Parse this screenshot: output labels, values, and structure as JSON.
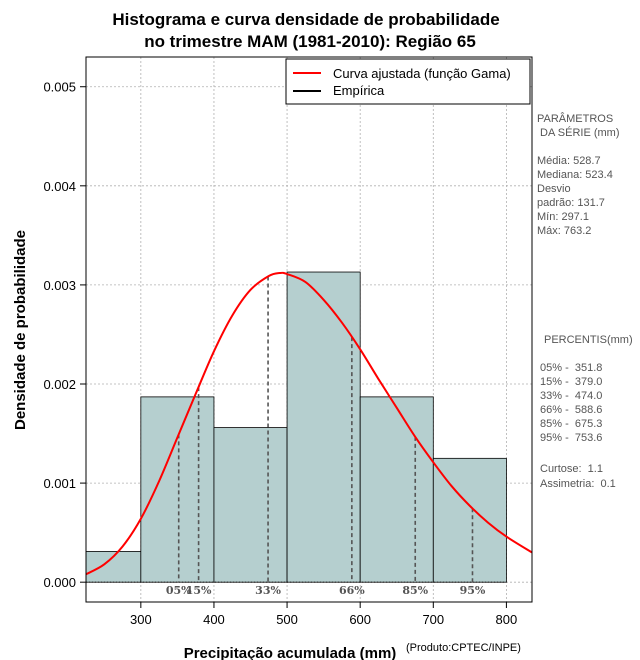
{
  "chart_data": {
    "type": "histogram",
    "title": [
      "Histograma e curva densidade de probabilidade",
      "no trimestre MAM (1981-2010): Região 65"
    ],
    "xlabel": "Precipitação acumulada (mm)",
    "ylabel": "Densidade de probabilidade",
    "credit": "(Produto:CPTEC/INPE)",
    "xlim": [
      225,
      835
    ],
    "ylim": [
      -0.0002,
      0.0053
    ],
    "x_ticks": [
      300,
      400,
      500,
      600,
      700,
      800
    ],
    "y_ticks": [
      0.0,
      0.001,
      0.002,
      0.003,
      0.004,
      0.005
    ],
    "y_tick_labels": [
      "0.000",
      "0.001",
      "0.002",
      "0.003",
      "0.004",
      "0.005"
    ],
    "bins": [
      {
        "start": 225,
        "end": 300,
        "density": 0.00031
      },
      {
        "start": 300,
        "end": 400,
        "density": 0.00187
      },
      {
        "start": 400,
        "end": 500,
        "density": 0.00156
      },
      {
        "start": 500,
        "end": 600,
        "density": 0.00313
      },
      {
        "start": 600,
        "end": 700,
        "density": 0.00187
      },
      {
        "start": 700,
        "end": 800,
        "density": 0.00125
      }
    ],
    "gamma_curve": {
      "x": [
        225,
        250,
        275,
        300,
        325,
        350,
        375,
        400,
        425,
        450,
        475,
        490,
        500,
        525,
        550,
        575,
        600,
        625,
        650,
        675,
        700,
        725,
        750,
        775,
        800,
        835
      ],
      "y": [
        8e-05,
        0.00018,
        0.00036,
        0.00064,
        0.00102,
        0.00146,
        0.0019,
        0.00233,
        0.00269,
        0.00295,
        0.00309,
        0.00312,
        0.00311,
        0.00303,
        0.00285,
        0.00262,
        0.00235,
        0.00205,
        0.00176,
        0.00147,
        0.00121,
        0.00097,
        0.00077,
        0.0006,
        0.00046,
        0.0003
      ]
    },
    "percentiles": [
      {
        "label": "05%",
        "value": 351.8
      },
      {
        "label": "15%",
        "value": 379.0
      },
      {
        "label": "33%",
        "value": 474.0
      },
      {
        "label": "66%",
        "value": 588.6
      },
      {
        "label": "85%",
        "value": 675.3
      },
      {
        "label": "95%",
        "value": 753.6
      }
    ],
    "legend": [
      {
        "label": "Curva ajustada (função Gama)",
        "color": "#ff0000"
      },
      {
        "label": "Empírica",
        "color": "#000000"
      }
    ],
    "colors": {
      "bar_fill": "#b5cfcf",
      "curve": "#ff0000",
      "grid": "#b0b0b0",
      "percentile_line": "#555555"
    }
  },
  "side_panel": {
    "params_title": [
      "PARÂMETROS",
      " DA SÉRIE (mm)"
    ],
    "params": [
      "Média:  528.7",
      "Mediana:  523.4",
      "Desvio",
      "padrão:  131.7",
      "Mín:  297.1",
      "Máx:  763.2"
    ],
    "percentis_title": "PERCENTIS(mm)",
    "percentis": [
      "05% -  351.8",
      "15% -  379.0",
      "33% -  474.0",
      "66% -  588.6",
      "85% -  675.3",
      "95% -  753.6"
    ],
    "stats": [
      "Curtose:  1.1",
      "Assimetria:  0.1"
    ]
  }
}
